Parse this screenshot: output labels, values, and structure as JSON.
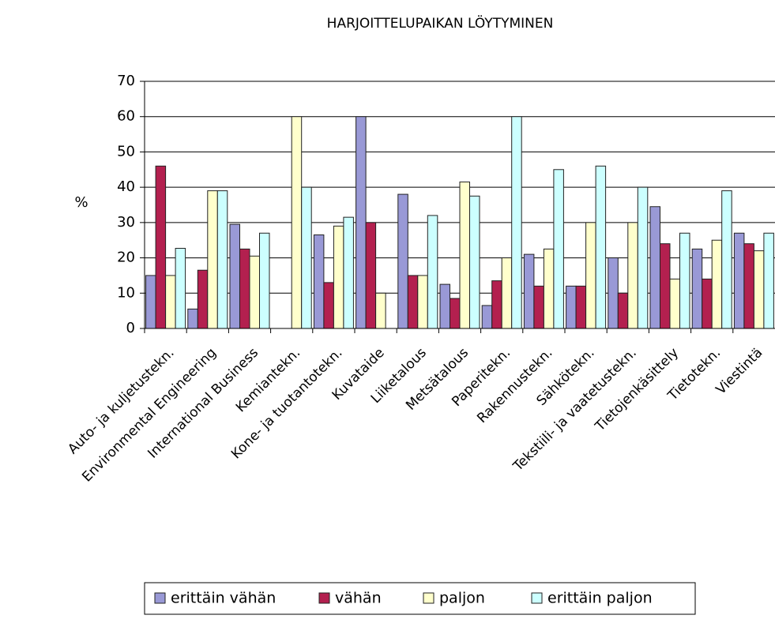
{
  "chart_data": {
    "type": "bar",
    "title": "HARJOITTELUPAIKAN LÖYTYMINEN",
    "y_label": "%",
    "categories": [
      "Auto- ja kuljetustekn.",
      "Environmental Engineering",
      "International Business",
      "Kemiantekn.",
      "Kone- ja tuotantotekn.",
      "Kuvataide",
      "Liiketalous",
      "Metsätalous",
      "Paperitekn.",
      "Rakennustekn.",
      "Sähkötekn.",
      "Tekstiili- ja vaatetustekn.",
      "Tietojenkäsittely",
      "Tietotekn.",
      "Viestintä"
    ],
    "series": [
      {
        "name": "erittäin vähän",
        "color": "#9999d6",
        "values": [
          15,
          5.5,
          29.5,
          null,
          26.5,
          60,
          38,
          12.5,
          6.5,
          21,
          12,
          20,
          34.5,
          22.5,
          27
        ]
      },
      {
        "name": "vähän",
        "color": "#b3204f",
        "values": [
          46,
          16.5,
          22.5,
          null,
          13,
          30,
          15,
          8.5,
          13.5,
          12,
          12,
          10,
          24,
          14,
          24
        ]
      },
      {
        "name": "paljon",
        "color": "#ffffcc",
        "values": [
          15,
          39,
          20.5,
          60,
          29,
          10,
          15,
          41.5,
          20,
          22.5,
          30,
          30,
          14,
          25,
          22
        ]
      },
      {
        "name": "erittäin paljon",
        "color": "#ccffff",
        "values": [
          22.7,
          39,
          27,
          40,
          31.5,
          null,
          32,
          37.5,
          60,
          45,
          46,
          40,
          27,
          39,
          27
        ]
      }
    ],
    "ylim": [
      0,
      70
    ],
    "yticks": [
      0,
      10,
      20,
      30,
      40,
      50,
      60,
      70
    ],
    "grid": true,
    "legend": "bottom"
  }
}
